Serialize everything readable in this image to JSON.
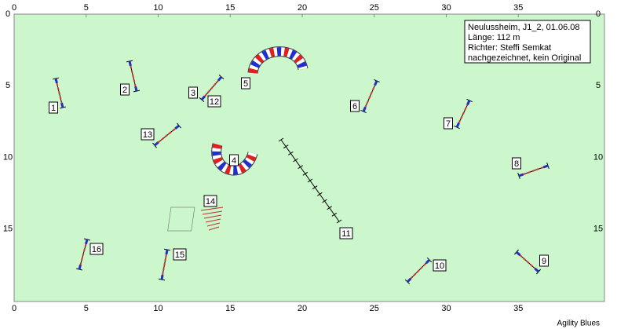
{
  "course": {
    "info": [
      "Neulussheim, J1_2, 01.06.08",
      "Länge: 112 m",
      "Richter: Steffi Semkat",
      "nachgezeichnet, kein Original"
    ],
    "x_ticks": [
      0,
      5,
      10,
      15,
      20,
      25,
      30,
      35
    ],
    "y_ticks": [
      0,
      5,
      10,
      15
    ],
    "obstacle_labels": [
      "1",
      "2",
      "3",
      "4",
      "5",
      "6",
      "7",
      "8",
      "9",
      "10",
      "11",
      "12",
      "13",
      "14",
      "15",
      "16"
    ],
    "footer": "Agility Blues"
  }
}
